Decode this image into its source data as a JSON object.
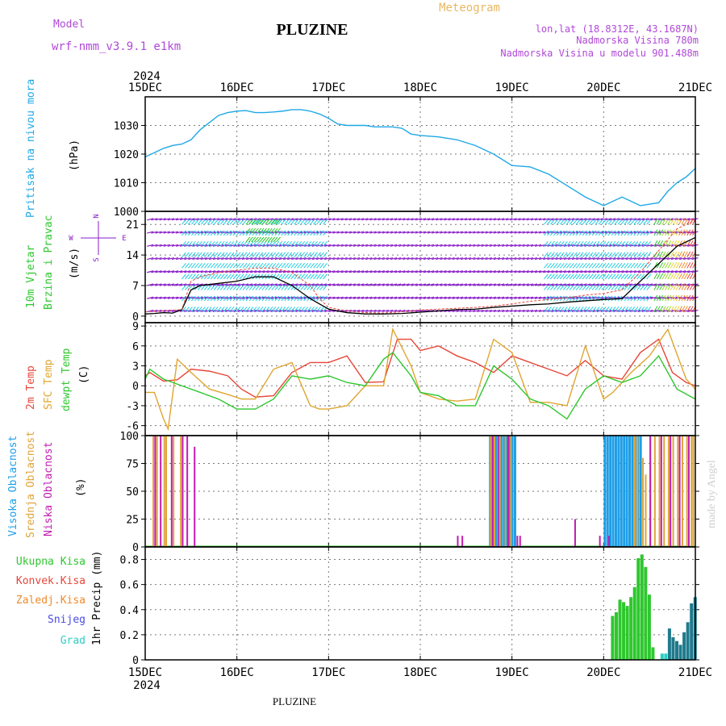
{
  "header": {
    "model_label": "Model",
    "model_name": "wrf-nmm_v3.9.1 e1km",
    "station": "PLUZINE",
    "product": "Meteogram",
    "coords": "lon,lat (18.8312E, 43.1687N)",
    "elevation": "Nadmorska Visina 780m",
    "model_elevation": "Nadmorska Visina u modelu 901.488m",
    "credit": "made by Angel",
    "footer_station": "PLUZINE"
  },
  "time_axis": {
    "year": "2024",
    "labels": [
      "15DEC",
      "16DEC",
      "17DEC",
      "18DEC",
      "19DEC",
      "20DEC",
      "21DEC"
    ]
  },
  "colors": {
    "pressure": "#1fa8e6",
    "temp2m": "#e8463a",
    "sfc": "#e0a531",
    "dew": "#2ec72e",
    "high_cloud": "#1e9ee6",
    "mid_cloud": "#dfa43a",
    "low_cloud": "#c21cb0",
    "total_precip": "#2ec72e",
    "convective": "#e8463a",
    "frozen": "#f08a2a",
    "snow": "#4a4ae6",
    "graupel": "#2ccfc4",
    "wind_violet": "#8a1ec8",
    "wind_cyan": "#1ecde0",
    "gust": "#e8463a",
    "model_label": "#b048d8",
    "product": "#e8b860"
  },
  "chart_data": [
    {
      "type": "line",
      "panel": "pressure",
      "ylabel_left": "Pritisak na nivou mora",
      "ylabel_unit": "(hPa)",
      "ylim": [
        1000,
        1040
      ],
      "yticks": [
        1000,
        1010,
        1020,
        1030
      ],
      "grid": true,
      "series": [
        {
          "x": [
            0,
            0.1,
            0.2,
            0.3,
            0.4,
            0.5,
            0.6,
            0.7,
            0.8,
            0.9,
            1.0,
            1.1,
            1.2,
            1.3,
            1.4,
            1.5,
            1.6,
            1.7,
            1.8,
            1.9,
            2.0,
            2.1,
            2.2,
            2.3,
            2.4,
            2.5,
            2.6,
            2.7,
            2.8,
            2.9,
            3.0,
            3.2,
            3.4,
            3.6,
            3.8,
            4.0,
            4.2,
            4.4,
            4.6,
            4.8,
            5.0,
            5.2,
            5.4,
            5.6,
            5.7,
            5.8,
            5.9,
            6.0
          ],
          "values": [
            1019,
            1020.5,
            1022,
            1023,
            1023.5,
            1025,
            1028.5,
            1031,
            1033.5,
            1034.5,
            1035,
            1035.2,
            1034.5,
            1034.5,
            1034.7,
            1035,
            1035.5,
            1035.5,
            1035,
            1034,
            1032.5,
            1030.5,
            1030,
            1030,
            1030,
            1029.5,
            1029.5,
            1029.5,
            1029,
            1027,
            1026.5,
            1026,
            1025,
            1023,
            1020,
            1016,
            1015.5,
            1013,
            1009,
            1005,
            1002,
            1005,
            1002,
            1003,
            1007,
            1010,
            1012,
            1015
          ]
        }
      ]
    },
    {
      "type": "line",
      "panel": "wind",
      "ylabel_left1": "10m Vjetar",
      "ylabel_left2": "Brzina i Pravac",
      "ylabel_unit": "(m/s)",
      "compass": {
        "n": "N",
        "e": "E",
        "s": "S",
        "w": "W"
      },
      "ylim": [
        -1.5,
        24
      ],
      "yticks": [
        0,
        7,
        14,
        21
      ],
      "grid": true,
      "series": [
        {
          "name": "speed",
          "x": [
            0,
            0.1,
            0.2,
            0.3,
            0.4,
            0.5,
            0.6,
            0.8,
            1.0,
            1.2,
            1.4,
            1.6,
            1.8,
            2.0,
            2.2,
            2.4,
            2.6,
            2.8,
            3.0,
            3.2,
            3.4,
            3.6,
            3.8,
            4.0,
            4.2,
            4.4,
            4.6,
            4.8,
            5.0,
            5.2,
            5.4,
            5.6,
            5.8,
            6.0
          ],
          "values": [
            0.5,
            0.6,
            0.8,
            0.7,
            1.5,
            6,
            7,
            7.5,
            8,
            9,
            9,
            7,
            4,
            1.6,
            0.8,
            0.5,
            0.5,
            0.6,
            0.9,
            1.2,
            1.5,
            1.6,
            2,
            2.3,
            2.6,
            2.8,
            3.2,
            3.5,
            3.8,
            4,
            8,
            12,
            16,
            18
          ]
        },
        {
          "name": "gust",
          "x": [
            0,
            0.2,
            0.4,
            0.5,
            0.6,
            0.8,
            1.0,
            1.2,
            1.4,
            1.6,
            1.8,
            1.9,
            2.0,
            2.2,
            2.4,
            2.6,
            2.8,
            3.0,
            3.2,
            3.4,
            3.6,
            3.8,
            4.0,
            4.2,
            4.4,
            4.6,
            4.8,
            5.0,
            5.2,
            5.4,
            5.6,
            5.8,
            6.0
          ],
          "values": [
            1,
            1.2,
            1.5,
            8,
            9,
            10,
            10.5,
            11,
            11,
            10,
            7,
            4,
            2,
            1.2,
            0.8,
            0.7,
            1,
            1.4,
            1.6,
            1.8,
            2,
            2.3,
            2.8,
            3.4,
            3.8,
            4.2,
            4.8,
            5.2,
            6,
            10,
            15,
            20,
            22
          ]
        }
      ]
    },
    {
      "type": "line",
      "panel": "temperature",
      "ylabel_left1": "2m Temp",
      "ylabel_left2": "SFC Temp",
      "ylabel_left3": "dewpt Temp",
      "ylabel_unit": "(C)",
      "ylim": [
        -7.5,
        9.5
      ],
      "yticks": [
        -6,
        -3,
        0,
        3,
        6,
        9
      ],
      "grid": true,
      "series": [
        {
          "name": "2m Temp",
          "x": [
            0,
            0.05,
            0.2,
            0.35,
            0.5,
            0.7,
            0.9,
            1.05,
            1.2,
            1.4,
            1.6,
            1.8,
            2.0,
            2.2,
            2.4,
            2.6,
            2.75,
            2.9,
            3.0,
            3.2,
            3.4,
            3.6,
            3.8,
            4.0,
            4.2,
            4.4,
            4.6,
            4.8,
            5.0,
            5.2,
            5.4,
            5.6,
            5.75,
            5.9,
            6.0
          ],
          "values": [
            1.5,
            2,
            0.7,
            0.9,
            2.5,
            2.2,
            1.5,
            -0.5,
            -1.7,
            -1.5,
            2,
            3.5,
            3.5,
            4.5,
            0.5,
            0.6,
            7,
            7,
            5.3,
            6,
            4.5,
            3.5,
            2,
            4.5,
            3.5,
            2.5,
            1.5,
            3.8,
            1.5,
            1,
            5,
            7,
            2,
            0.5,
            0
          ]
        },
        {
          "name": "SFC Temp",
          "x": [
            0,
            0.1,
            0.2,
            0.25,
            0.35,
            0.5,
            0.7,
            0.9,
            1.05,
            1.2,
            1.4,
            1.6,
            1.8,
            1.9,
            2.0,
            2.2,
            2.4,
            2.6,
            2.7,
            2.9,
            3.0,
            3.2,
            3.4,
            3.6,
            3.8,
            4.0,
            4.2,
            4.4,
            4.6,
            4.8,
            5.0,
            5.1,
            5.3,
            5.5,
            5.7,
            5.9,
            6.0
          ],
          "values": [
            -1,
            -1,
            -5,
            -6.5,
            4,
            2,
            -0.5,
            -1.3,
            -2,
            -2,
            2.5,
            3.5,
            -3,
            -3.5,
            -3.5,
            -3,
            0,
            0,
            8.5,
            3,
            -1,
            -2,
            -2.3,
            -2,
            7,
            5,
            -2.5,
            -2.5,
            -3,
            6,
            -2,
            -1,
            2,
            4.5,
            8.5,
            1,
            -0.5
          ]
        },
        {
          "name": "dewpt Temp",
          "x": [
            0,
            0.05,
            0.2,
            0.4,
            0.6,
            0.8,
            1.0,
            1.2,
            1.4,
            1.6,
            1.8,
            2.0,
            2.2,
            2.4,
            2.6,
            2.7,
            2.9,
            3.0,
            3.2,
            3.4,
            3.6,
            3.8,
            4.0,
            4.2,
            4.4,
            4.6,
            4.8,
            5.0,
            5.2,
            5.4,
            5.6,
            5.8,
            6.0
          ],
          "values": [
            1,
            2.5,
            1,
            0,
            -1,
            -2,
            -3.5,
            -3.5,
            -2,
            1.5,
            1,
            1.5,
            0.5,
            0,
            4,
            5,
            1.5,
            -1,
            -1.5,
            -3,
            -3,
            3,
            1,
            -2,
            -3,
            -5,
            -0.5,
            1.5,
            0.5,
            1.5,
            4.5,
            -0.5,
            -2
          ]
        }
      ]
    },
    {
      "type": "bar",
      "panel": "cloud",
      "ylabel_left1": "Visoka Oblacnost",
      "ylabel_left2": "Srednja Oblacnost",
      "ylabel_left3": "Niska Oblacnost",
      "ylabel_unit": "(%)",
      "ylim": [
        0,
        100
      ],
      "yticks": [
        0,
        25,
        50,
        75,
        100
      ],
      "grid": true,
      "series": [
        {
          "name": "high",
          "x": [
            3.75,
            3.78,
            3.81,
            3.84,
            3.87,
            3.9,
            3.93,
            3.96,
            3.99,
            4.02,
            5.0,
            5.03,
            5.06,
            5.09,
            5.12,
            5.15,
            5.18,
            5.21,
            5.24,
            5.27,
            5.3,
            5.33,
            5.36,
            5.39
          ],
          "values": [
            100,
            100,
            100,
            100,
            100,
            100,
            100,
            100,
            100,
            100,
            100,
            100,
            100,
            100,
            100,
            100,
            100,
            100,
            100,
            100,
            100,
            100,
            100,
            100
          ]
        },
        {
          "name": "mid",
          "x": [
            0.08,
            0.12,
            0.2,
            0.22,
            0.3,
            0.38,
            3.76,
            3.8,
            3.86,
            3.92,
            3.98,
            5.33,
            5.36,
            5.42,
            5.45,
            5.5,
            5.55,
            5.6,
            5.65,
            5.7,
            5.75,
            5.8,
            5.85,
            5.9,
            5.95,
            5.97
          ],
          "values": [
            100,
            100,
            100,
            100,
            100,
            100,
            100,
            100,
            100,
            100,
            100,
            100,
            100,
            80,
            65,
            100,
            100,
            100,
            100,
            100,
            100,
            100,
            100,
            100,
            100,
            100
          ]
        },
        {
          "name": "low",
          "x": [
            0.1,
            0.16,
            0.28,
            0.4,
            0.45,
            0.53,
            3.4,
            3.45,
            3.78,
            3.84,
            3.95,
            4.05,
            4.08,
            4.68,
            4.95,
            5.05,
            5.5,
            5.62,
            5.72,
            5.82,
            5.92
          ],
          "values": [
            100,
            100,
            100,
            100,
            100,
            90,
            10,
            10,
            100,
            100,
            100,
            10,
            10,
            25,
            10,
            10,
            100,
            100,
            100,
            100,
            100
          ]
        }
      ]
    },
    {
      "type": "bar",
      "panel": "precip",
      "legend": [
        "Ukupna Kisa",
        "Konvek.Kisa",
        "Zaledj.Kisa",
        "Snijeg",
        "Grad"
      ],
      "ylabel_left": "1hr Precip (mm)",
      "ylim": [
        0,
        0.9
      ],
      "yticks": [
        0,
        0.2,
        0.4,
        0.6,
        0.8
      ],
      "grid": true,
      "series": [
        {
          "name": "Ukupna Kisa",
          "x": [
            5.08,
            5.12,
            5.16,
            5.2,
            5.24,
            5.28,
            5.32,
            5.36,
            5.4,
            5.44,
            5.48,
            5.52
          ],
          "values": [
            0.35,
            0.38,
            0.48,
            0.46,
            0.43,
            0.5,
            0.58,
            0.81,
            0.84,
            0.74,
            0.52,
            0.1
          ]
        },
        {
          "name": "Snijeg",
          "x": [
            5.7,
            5.74,
            5.78,
            5.82,
            5.86,
            5.9,
            5.94,
            5.98
          ],
          "values": [
            0.25,
            0.18,
            0.15,
            0.12,
            0.22,
            0.3,
            0.45,
            0.5
          ]
        },
        {
          "name": "Grad",
          "x": [
            5.62,
            5.66
          ],
          "values": [
            0.05,
            0.05
          ]
        }
      ]
    }
  ]
}
